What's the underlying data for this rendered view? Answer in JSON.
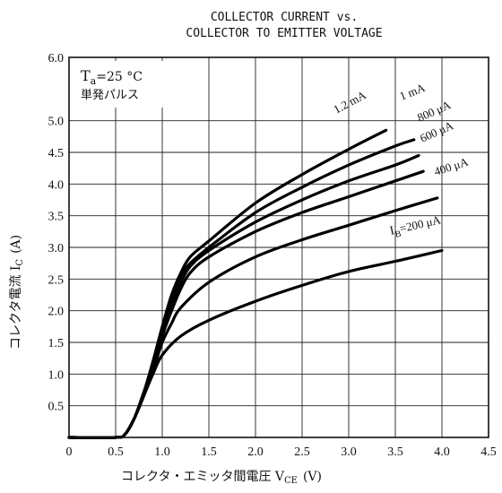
{
  "chart_data": {
    "type": "line",
    "title": "COLLECTOR CURRENT vs.",
    "subtitle": "COLLECTOR TO EMITTER VOLTAGE",
    "xlabel": "コレクタ・エミッタ間電圧 V",
    "xlabel_sub": "CE",
    "xlabel_unit": "(V)",
    "ylabel": "コレクタ電流 I",
    "ylabel_sub": "C",
    "ylabel_unit": "(A)",
    "xlim": [
      0,
      4.5
    ],
    "ylim": [
      0,
      6.0
    ],
    "xticks": [
      "0",
      "0.5",
      "1.0",
      "1.5",
      "2.0",
      "2.5",
      "3.0",
      "3.5",
      "4.0",
      "4.5"
    ],
    "yticks": [
      "0.5",
      "1.0",
      "1.5",
      "2.0",
      "2.5",
      "3.0",
      "3.5",
      "4.0",
      "4.5",
      "5.0",
      "6.0"
    ],
    "grid": true,
    "conditions": {
      "ta_symbol": "T",
      "ta_sub": "a",
      "ta_value": "=25 °C",
      "pulse": "単発パルス"
    },
    "series": [
      {
        "name": "IB=200 μA",
        "label_main": "I",
        "label_sub": "B",
        "label_rest": "=200 μA",
        "x": [
          0,
          0.5,
          0.6,
          0.7,
          0.8,
          0.9,
          1.0,
          1.2,
          1.5,
          2.0,
          2.5,
          3.0,
          3.5,
          4.0
        ],
        "y": [
          0,
          0,
          0.05,
          0.3,
          0.65,
          1.0,
          1.3,
          1.6,
          1.85,
          2.15,
          2.4,
          2.62,
          2.78,
          2.95
        ]
      },
      {
        "name": "400 μA",
        "label_main": "400 μA",
        "x": [
          0,
          0.5,
          0.6,
          0.7,
          0.8,
          0.9,
          1.0,
          1.1,
          1.2,
          1.5,
          2.0,
          2.5,
          3.0,
          3.5,
          3.95
        ],
        "y": [
          0,
          0,
          0.05,
          0.3,
          0.65,
          1.05,
          1.5,
          1.8,
          2.05,
          2.45,
          2.85,
          3.12,
          3.35,
          3.58,
          3.78
        ]
      },
      {
        "name": "600 μA",
        "label_main": "600 μA",
        "x": [
          0,
          0.5,
          0.6,
          0.7,
          0.8,
          0.9,
          1.0,
          1.1,
          1.2,
          1.3,
          1.5,
          2.0,
          2.5,
          3.0,
          3.5,
          3.8
        ],
        "y": [
          0,
          0,
          0.05,
          0.3,
          0.7,
          1.1,
          1.6,
          2.0,
          2.35,
          2.6,
          2.85,
          3.25,
          3.55,
          3.8,
          4.05,
          4.2
        ]
      },
      {
        "name": "800 μA",
        "label_main": "800 μA",
        "x": [
          0,
          0.5,
          0.6,
          0.7,
          0.8,
          0.9,
          1.0,
          1.1,
          1.2,
          1.3,
          1.5,
          2.0,
          2.5,
          3.0,
          3.5,
          3.75
        ],
        "y": [
          0,
          0,
          0.05,
          0.3,
          0.7,
          1.15,
          1.65,
          2.1,
          2.45,
          2.7,
          2.95,
          3.4,
          3.75,
          4.05,
          4.3,
          4.45
        ]
      },
      {
        "name": "1 mA",
        "label_main": "1 mA",
        "x": [
          0,
          0.5,
          0.6,
          0.7,
          0.8,
          0.9,
          1.0,
          1.1,
          1.2,
          1.3,
          1.5,
          2.0,
          2.5,
          3.0,
          3.5,
          3.7
        ],
        "y": [
          0,
          0,
          0.05,
          0.3,
          0.7,
          1.15,
          1.7,
          2.2,
          2.55,
          2.75,
          3.0,
          3.55,
          3.95,
          4.3,
          4.6,
          4.7
        ]
      },
      {
        "name": "1.2 mA",
        "label_main": "1.2 mA",
        "x": [
          0,
          0.5,
          0.6,
          0.7,
          0.8,
          0.9,
          1.0,
          1.1,
          1.2,
          1.3,
          1.5,
          2.0,
          2.5,
          3.0,
          3.4
        ],
        "y": [
          0,
          0,
          0.05,
          0.3,
          0.7,
          1.2,
          1.75,
          2.25,
          2.6,
          2.85,
          3.1,
          3.7,
          4.15,
          4.55,
          4.85
        ]
      }
    ]
  }
}
